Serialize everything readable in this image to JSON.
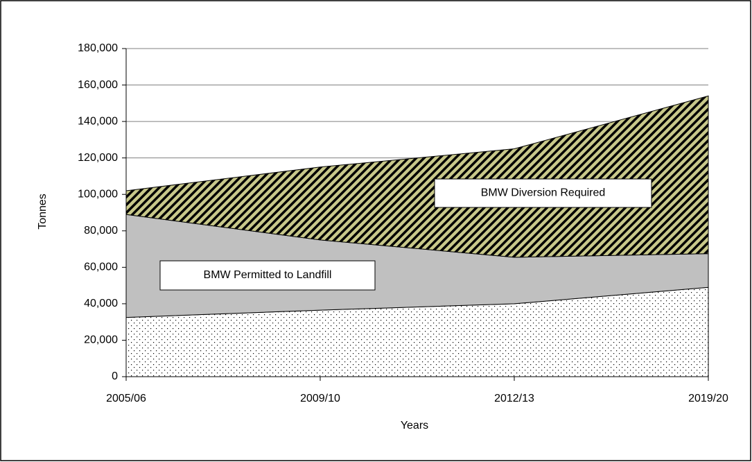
{
  "chart_data": {
    "type": "stacked-area",
    "x_label": "Years",
    "y_label": "Tonnes",
    "categories": [
      "2005/06",
      "2009/10",
      "2012/13",
      "2019/20"
    ],
    "series": [
      {
        "color": "#ffffff",
        "values": [
          32500,
          36500,
          40000,
          49000
        ]
      },
      {
        "name": "BMW Permitted to Landfill",
        "color": "#c0c0c0",
        "values": [
          56500,
          38500,
          25500,
          18500
        ]
      },
      {
        "name": "BMW Diversion Required",
        "color": "#c8c88a",
        "values": [
          13000,
          40000,
          59500,
          86500
        ]
      }
    ],
    "ylim": [
      0,
      180000
    ],
    "yticks": [
      0,
      {
        "value": 20000,
        "label": "20,000"
      },
      {
        "value": 40000,
        "label": "40,000"
      },
      {
        "value": 60000,
        "label": "60,000"
      },
      {
        "value": 80000,
        "label": "80,000"
      },
      {
        "value": 100000,
        "label": "100,000"
      },
      {
        "value": 120000,
        "label": "120,000"
      },
      {
        "value": 140000,
        "label": "140,000"
      },
      {
        "value": 160000,
        "label": "160,000"
      },
      {
        "value": 180000,
        "label": "180,000"
      }
    ],
    "grid": true
  }
}
